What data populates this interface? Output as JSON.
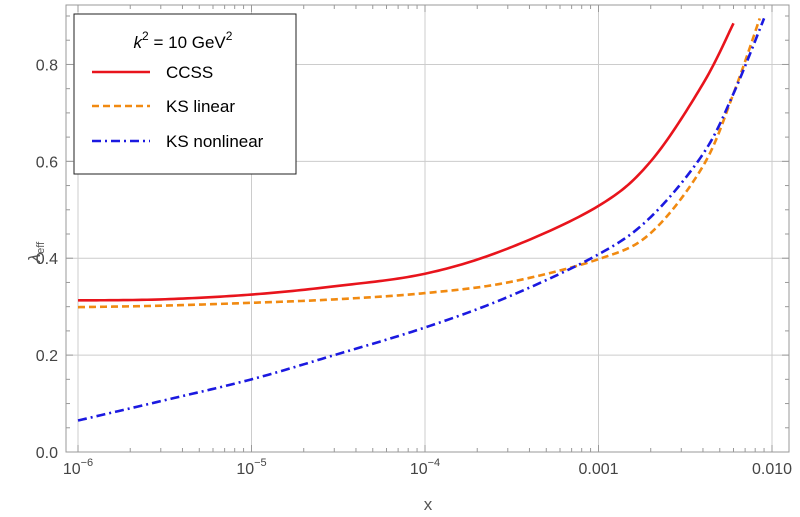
{
  "chart_data": {
    "type": "line",
    "xscale": "log",
    "xlim": [
      1e-06,
      0.01
    ],
    "ylim": [
      0.0,
      0.9
    ],
    "grid": true,
    "xlabel": "x",
    "ylabel": {
      "base": "λ",
      "sub": "eff"
    },
    "x_ticks": [
      {
        "value": 1e-06,
        "label": {
          "base": "10",
          "exp": "−6"
        }
      },
      {
        "value": 1e-05,
        "label": {
          "base": "10",
          "exp": "−5"
        }
      },
      {
        "value": 0.0001,
        "label": {
          "base": "10",
          "exp": "−4"
        }
      },
      {
        "value": 0.001,
        "label": {
          "base": "0.001",
          "exp": ""
        }
      },
      {
        "value": 0.01,
        "label": {
          "base": "0.010",
          "exp": ""
        }
      }
    ],
    "y_ticks": [
      {
        "value": 0.0,
        "label": "0.0"
      },
      {
        "value": 0.2,
        "label": "0.2"
      },
      {
        "value": 0.4,
        "label": "0.4"
      },
      {
        "value": 0.6,
        "label": "0.6"
      },
      {
        "value": 0.8,
        "label": "0.8"
      }
    ],
    "legend": {
      "position": "top-left",
      "title": {
        "var": "k",
        "exp": "2",
        "mid": " = 10 GeV",
        "unit_exp": "2"
      }
    },
    "series": [
      {
        "name": "CCSS",
        "color": "#e8141c",
        "style": "solid",
        "x": [
          1e-06,
          3e-06,
          1e-05,
          3e-05,
          0.0001,
          0.0003,
          0.001,
          0.002,
          0.004,
          0.006
        ],
        "y": [
          0.313,
          0.315,
          0.325,
          0.342,
          0.368,
          0.42,
          0.508,
          0.6,
          0.76,
          0.885
        ]
      },
      {
        "name": "KS linear",
        "color": "#f18a11",
        "style": "dashed",
        "x": [
          1e-06,
          3e-06,
          1e-05,
          3e-05,
          0.0001,
          0.0003,
          0.001,
          0.002,
          0.004,
          0.006,
          0.0085
        ],
        "y": [
          0.299,
          0.302,
          0.308,
          0.315,
          0.328,
          0.35,
          0.398,
          0.452,
          0.59,
          0.74,
          0.895
        ]
      },
      {
        "name": "KS nonlinear",
        "color": "#1b19e0",
        "style": "dashdot",
        "x": [
          1e-06,
          3e-06,
          1e-05,
          3e-05,
          0.0001,
          0.0003,
          0.001,
          0.002,
          0.004,
          0.006,
          0.009
        ],
        "y": [
          0.065,
          0.105,
          0.15,
          0.2,
          0.257,
          0.32,
          0.408,
          0.485,
          0.615,
          0.74,
          0.895
        ]
      }
    ]
  }
}
